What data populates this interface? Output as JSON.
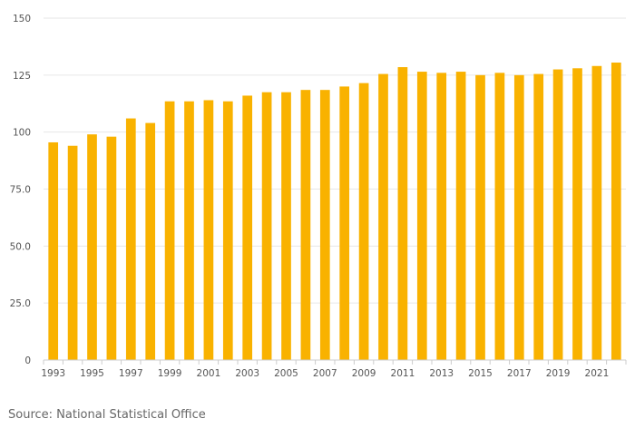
{
  "colors": {
    "bar": "#F9B200",
    "grid": "#e6e6e6",
    "axis": "#cccccc",
    "text": "#555555"
  },
  "source": "Source: National Statistical Office",
  "chart_data": {
    "type": "bar",
    "title": "",
    "xlabel": "",
    "ylabel": "",
    "grid": true,
    "legend": "none",
    "ylim": [
      0,
      150
    ],
    "yticks": [
      "0",
      "25.0",
      "50.0",
      "75.0",
      "100",
      "125",
      "150"
    ],
    "ytick_values": [
      0,
      25,
      50,
      75,
      100,
      125,
      150
    ],
    "categories": [
      "1993",
      "1994",
      "1995",
      "1996",
      "1997",
      "1998",
      "1999",
      "2000",
      "2001",
      "2002",
      "2003",
      "2004",
      "2005",
      "2006",
      "2007",
      "2008",
      "2009",
      "2010",
      "2011",
      "2012",
      "2013",
      "2014",
      "2015",
      "2016",
      "2017",
      "2018",
      "2019",
      "2020",
      "2021",
      "2022"
    ],
    "xtick_labels": [
      "1993",
      "1995",
      "1997",
      "1999",
      "2001",
      "2003",
      "2005",
      "2007",
      "2009",
      "2011",
      "2013",
      "2015",
      "2017",
      "2019",
      "2021"
    ],
    "values": [
      95.5,
      94,
      99,
      98,
      106,
      104,
      113.5,
      113.5,
      114,
      113.5,
      116,
      117.5,
      117.5,
      118.5,
      118.5,
      120,
      121.5,
      125.5,
      128.5,
      126.5,
      126,
      126.5,
      125,
      126,
      125,
      125.5,
      127.5,
      128,
      129,
      130.5
    ]
  }
}
